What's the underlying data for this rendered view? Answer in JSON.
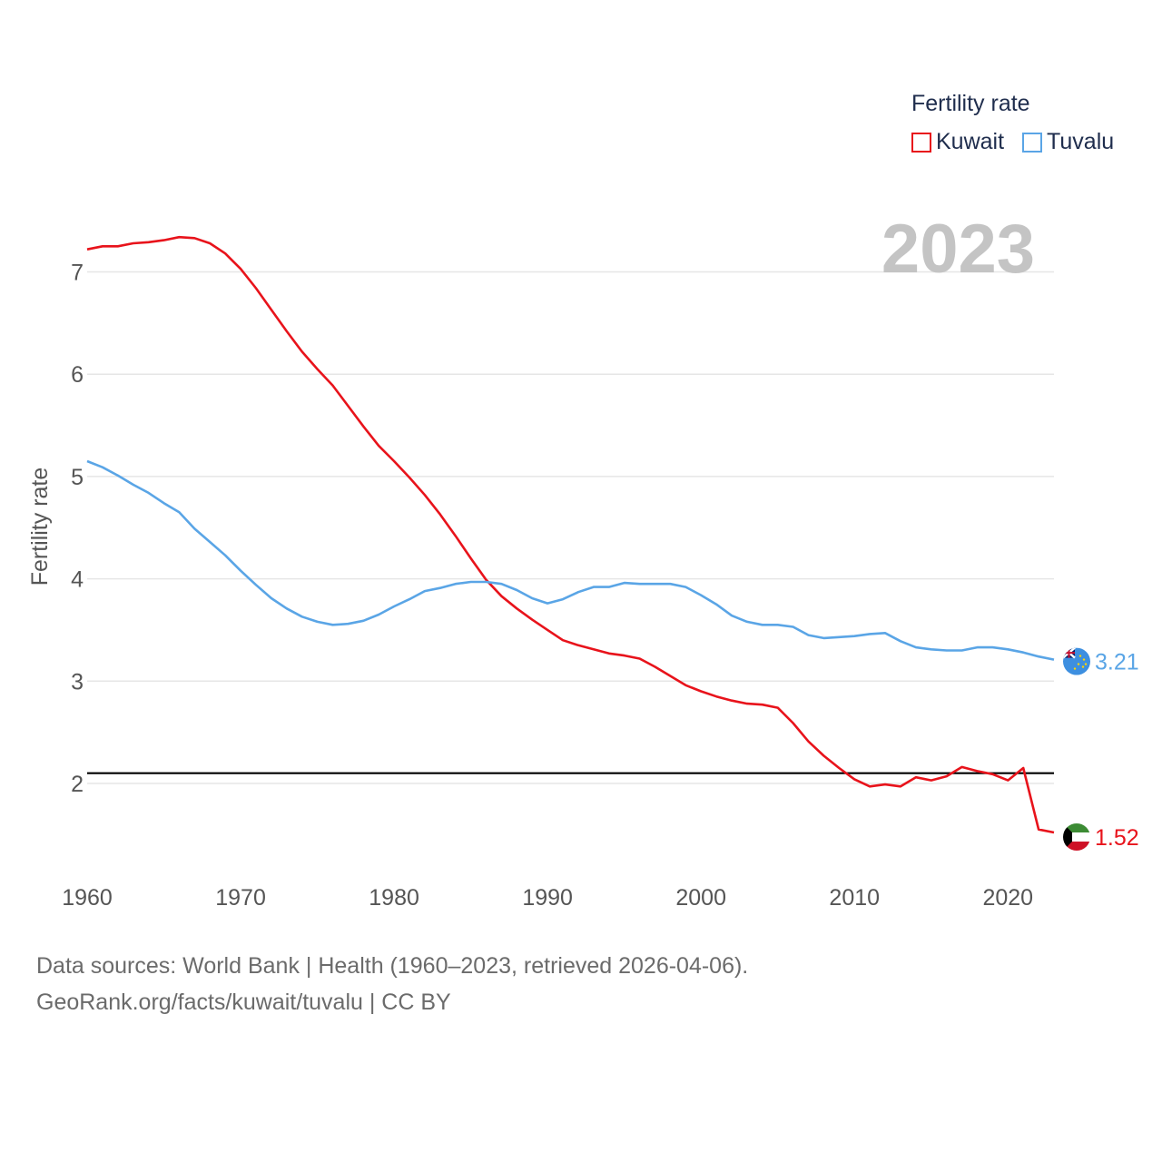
{
  "chart_data": {
    "type": "line",
    "title": "Fertility rate",
    "ylabel": "Fertility rate",
    "xlabel": "",
    "current_year": "2023",
    "xlim": [
      1960,
      2023
    ],
    "ylim": [
      1.05,
      7.75
    ],
    "x_ticks": [
      1960,
      1970,
      1980,
      1990,
      2000,
      2010,
      2020
    ],
    "y_ticks": [
      2,
      3,
      4,
      5,
      6,
      7
    ],
    "reference_line": 2.1,
    "x": [
      1960,
      1961,
      1962,
      1963,
      1964,
      1965,
      1966,
      1967,
      1968,
      1969,
      1970,
      1971,
      1972,
      1973,
      1974,
      1975,
      1976,
      1977,
      1978,
      1979,
      1980,
      1981,
      1982,
      1983,
      1984,
      1985,
      1986,
      1987,
      1988,
      1989,
      1990,
      1991,
      1992,
      1993,
      1994,
      1995,
      1996,
      1997,
      1998,
      1999,
      2000,
      2001,
      2002,
      2003,
      2004,
      2005,
      2006,
      2007,
      2008,
      2009,
      2010,
      2011,
      2012,
      2013,
      2014,
      2015,
      2016,
      2017,
      2018,
      2019,
      2020,
      2021,
      2022,
      2023
    ],
    "series": [
      {
        "name": "Kuwait",
        "color": "#e8131b",
        "end_label": "1.52",
        "flag": "kuwait-flag-icon",
        "values": [
          7.22,
          7.25,
          7.25,
          7.28,
          7.29,
          7.31,
          7.34,
          7.33,
          7.28,
          7.18,
          7.03,
          6.84,
          6.63,
          6.42,
          6.22,
          6.05,
          5.89,
          5.69,
          5.49,
          5.3,
          5.15,
          4.99,
          4.82,
          4.63,
          4.42,
          4.2,
          3.99,
          3.83,
          3.71,
          3.6,
          3.5,
          3.4,
          3.35,
          3.31,
          3.27,
          3.25,
          3.22,
          3.14,
          3.05,
          2.96,
          2.9,
          2.85,
          2.81,
          2.78,
          2.77,
          2.74,
          2.59,
          2.41,
          2.27,
          2.15,
          2.04,
          1.97,
          1.99,
          1.97,
          2.06,
          2.03,
          2.07,
          2.16,
          2.12,
          2.09,
          2.03,
          2.15,
          1.55,
          1.52
        ]
      },
      {
        "name": "Tuvalu",
        "color": "#5aa5e6",
        "end_label": "3.21",
        "flag": "tuvalu-flag-icon",
        "values": [
          5.15,
          5.09,
          5.01,
          4.92,
          4.84,
          4.74,
          4.65,
          4.49,
          4.36,
          4.23,
          4.08,
          3.94,
          3.81,
          3.71,
          3.63,
          3.58,
          3.55,
          3.56,
          3.59,
          3.65,
          3.73,
          3.8,
          3.88,
          3.91,
          3.95,
          3.97,
          3.97,
          3.95,
          3.89,
          3.81,
          3.76,
          3.8,
          3.87,
          3.92,
          3.92,
          3.96,
          3.95,
          3.95,
          3.95,
          3.92,
          3.84,
          3.75,
          3.64,
          3.58,
          3.55,
          3.55,
          3.53,
          3.45,
          3.42,
          3.43,
          3.44,
          3.46,
          3.47,
          3.39,
          3.33,
          3.31,
          3.3,
          3.3,
          3.33,
          3.33,
          3.31,
          3.28,
          3.24,
          3.21
        ]
      }
    ]
  },
  "legend": {
    "title": "Fertility rate",
    "items": [
      "Kuwait",
      "Tuvalu"
    ]
  },
  "footer": {
    "line1": "Data sources: World Bank | Health (1960–2023, retrieved 2026-04-06).",
    "line2": "GeoRank.org/facts/kuwait/tuvalu | CC BY"
  }
}
